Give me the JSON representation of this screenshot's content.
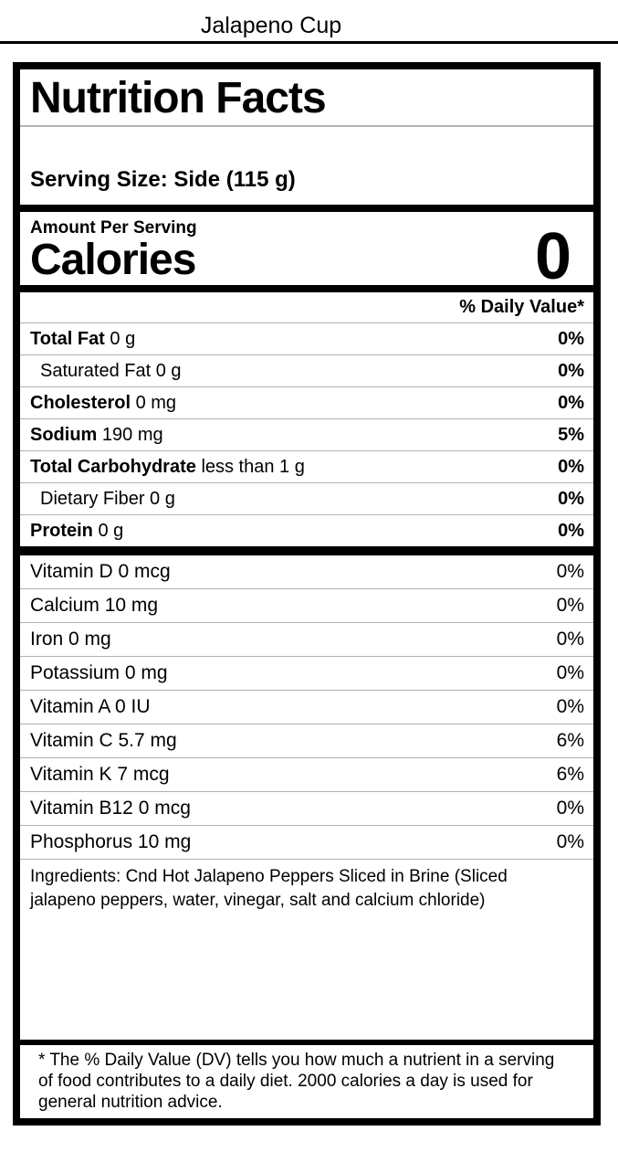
{
  "page": {
    "title": "Jalapeno Cup"
  },
  "label": {
    "title": "Nutrition Facts",
    "serving_size": "Serving Size: Side (115 g)",
    "amount_per_serving": "Amount Per Serving",
    "calories_label": "Calories",
    "calories_value": "0",
    "daily_value_header": "% Daily Value*",
    "main_rows": [
      {
        "name": "Total Fat",
        "amount": "0 g",
        "pct": "0%",
        "bold": true,
        "indent": false
      },
      {
        "name": "Saturated Fat",
        "amount": "0 g",
        "pct": "0%",
        "bold": false,
        "indent": true
      },
      {
        "name": "Cholesterol",
        "amount": "0 mg",
        "pct": "0%",
        "bold": true,
        "indent": false
      },
      {
        "name": "Sodium",
        "amount": "190 mg",
        "pct": "5%",
        "bold": true,
        "indent": false
      },
      {
        "name": "Total Carbohydrate",
        "amount": "less than 1 g",
        "pct": "0%",
        "bold": true,
        "indent": false
      },
      {
        "name": "Dietary Fiber",
        "amount": "0 g",
        "pct": "0%",
        "bold": false,
        "indent": true
      },
      {
        "name": "Protein",
        "amount": "0 g",
        "pct": "0%",
        "bold": true,
        "indent": false
      }
    ],
    "micronutrient_rows": [
      {
        "name": "Vitamin D",
        "amount": "0 mcg",
        "pct": "0%"
      },
      {
        "name": "Calcium",
        "amount": "10 mg",
        "pct": "0%"
      },
      {
        "name": "Iron",
        "amount": "0 mg",
        "pct": "0%"
      },
      {
        "name": "Potassium",
        "amount": "0 mg",
        "pct": "0%"
      },
      {
        "name": "Vitamin A",
        "amount": "0 IU",
        "pct": "0%"
      },
      {
        "name": "Vitamin C",
        "amount": "5.7 mg",
        "pct": "6%"
      },
      {
        "name": "Vitamin K",
        "amount": "7 mcg",
        "pct": "6%"
      },
      {
        "name": "Vitamin B12",
        "amount": "0 mcg",
        "pct": "0%"
      },
      {
        "name": "Phosphorus",
        "amount": "10 mg",
        "pct": "0%"
      }
    ],
    "ingredients": "Ingredients: Cnd Hot Jalapeno Peppers Sliced in Brine (Sliced jalapeno peppers, water, vinegar, salt and calcium chloride)",
    "footnote": "* The % Daily Value (DV) tells you how much a nutrient in a serving of food contributes to a daily diet. 2000 calories a day is used for general nutrition advice."
  },
  "colors": {
    "text": "#000000",
    "divider": "#b2b2b2",
    "background": "#ffffff"
  }
}
